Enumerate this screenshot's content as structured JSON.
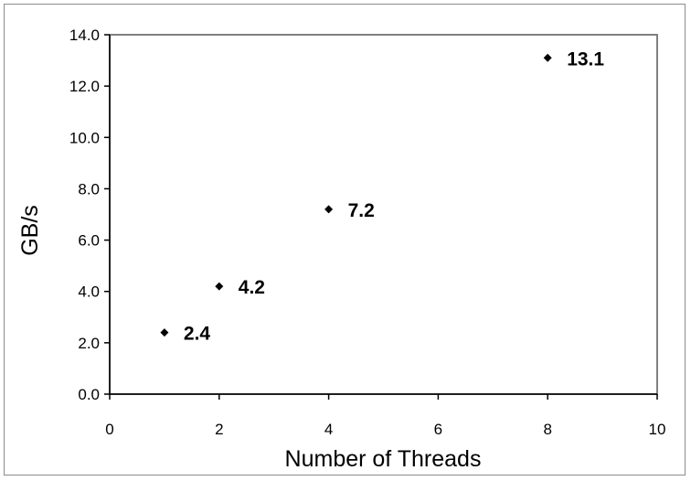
{
  "chart_data": {
    "type": "scatter",
    "title": "",
    "xlabel": "Number of Threads",
    "ylabel": "GB/s",
    "xlim": [
      0,
      10
    ],
    "ylim": [
      0.0,
      14.0
    ],
    "x_ticks": [
      "0",
      "2",
      "4",
      "6",
      "8",
      "10"
    ],
    "y_ticks": [
      "0.0",
      "2.0",
      "4.0",
      "6.0",
      "8.0",
      "10.0",
      "12.0",
      "14.0"
    ],
    "grid": false,
    "legend": false,
    "marker": "diamond",
    "series": [
      {
        "points": [
          {
            "x": 1,
            "y": 2.4,
            "label": "2.4"
          },
          {
            "x": 2,
            "y": 4.2,
            "label": "4.2"
          },
          {
            "x": 4,
            "y": 7.2,
            "label": "7.2"
          },
          {
            "x": 8,
            "y": 13.1,
            "label": "13.1"
          }
        ]
      }
    ],
    "colors": {
      "marker": "#000000",
      "plot_border": "#808080",
      "axis": "#000000"
    }
  }
}
